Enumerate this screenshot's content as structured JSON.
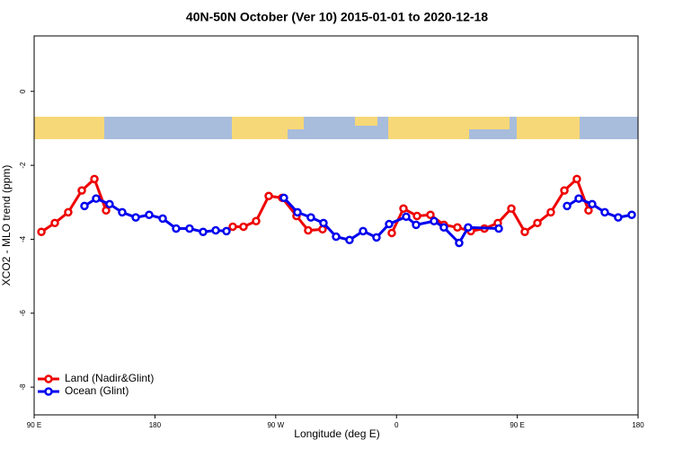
{
  "chart_data": {
    "type": "line",
    "title": "40N-50N October (Ver 10)   2015-01-01 to 2020-12-18",
    "x_label": "Longitude (deg E)",
    "y_label": "XCO2 - MLO trend (ppm)",
    "xlim": [
      90,
      540
    ],
    "xticks": [
      {
        "value": 90,
        "label": "90 E"
      },
      180,
      {
        "value": 270,
        "label": "90 W"
      },
      {
        "value": 360,
        "label": "0"
      },
      {
        "value": 450,
        "label": "90 E"
      },
      {
        "value": 540,
        "label": "180"
      }
    ],
    "ylim": [
      -8.75,
      1.5
    ],
    "yticks": [
      0,
      -2,
      -4,
      -6,
      -8
    ],
    "legend": "bottom-left",
    "series": [
      {
        "name": "Land (Nadir&Glint)",
        "color": "#ee0000",
        "x": [
          95.4,
          105.4,
          115.4,
          125.5,
          134.9,
          143.6,
          190,
          238.0,
          246.0,
          255.4,
          264.8,
          274.8,
          285.5,
          294.2,
          304.9,
          330,
          356.5,
          365.2,
          375.3,
          385.3,
          395.3,
          405.4,
          415.4,
          425.5,
          435.5,
          445.6,
          455.6,
          465.0,
          475.0,
          485.1,
          494.4,
          503.1
        ],
        "values": [
          -3.8,
          -3.56,
          -3.27,
          -2.68,
          -2.37,
          -3.22,
          null,
          -3.66,
          -3.66,
          -3.51,
          -2.83,
          -2.88,
          -3.37,
          -3.76,
          -3.73,
          null,
          -3.83,
          -3.17,
          -3.37,
          -3.34,
          -3.61,
          -3.68,
          -3.78,
          -3.71,
          -3.56,
          -3.17,
          -3.8,
          -3.56,
          -3.27,
          -2.68,
          -2.37,
          -3.22
        ]
      },
      {
        "name": "Ocean (Glint)",
        "color": "#0000ee",
        "x": [
          127.5,
          136.2,
          146.2,
          155.6,
          165.7,
          175.7,
          185.8,
          195.8,
          205.8,
          215.9,
          225.3,
          233.3,
          255,
          276.1,
          286.2,
          296.2,
          305.6,
          315.0,
          325.0,
          335.1,
          345.1,
          354.5,
          367.2,
          374.6,
          388.0,
          395.3,
          406.7,
          413.4,
          436.2,
          460,
          487.1,
          495.8,
          505.8,
          515.2,
          525.2,
          535.3
        ],
        "values": [
          -3.1,
          -2.9,
          -3.05,
          -3.27,
          -3.41,
          -3.34,
          -3.44,
          -3.71,
          -3.71,
          -3.8,
          -3.76,
          -3.78,
          null,
          -2.88,
          -3.27,
          -3.41,
          -3.56,
          -3.93,
          -4.02,
          -3.78,
          -3.95,
          -3.59,
          -3.39,
          -3.61,
          -3.51,
          -3.68,
          -4.1,
          -3.68,
          -3.71,
          null,
          -3.1,
          -2.9,
          -3.05,
          -3.27,
          -3.41,
          -3.34
        ]
      }
    ]
  }
}
